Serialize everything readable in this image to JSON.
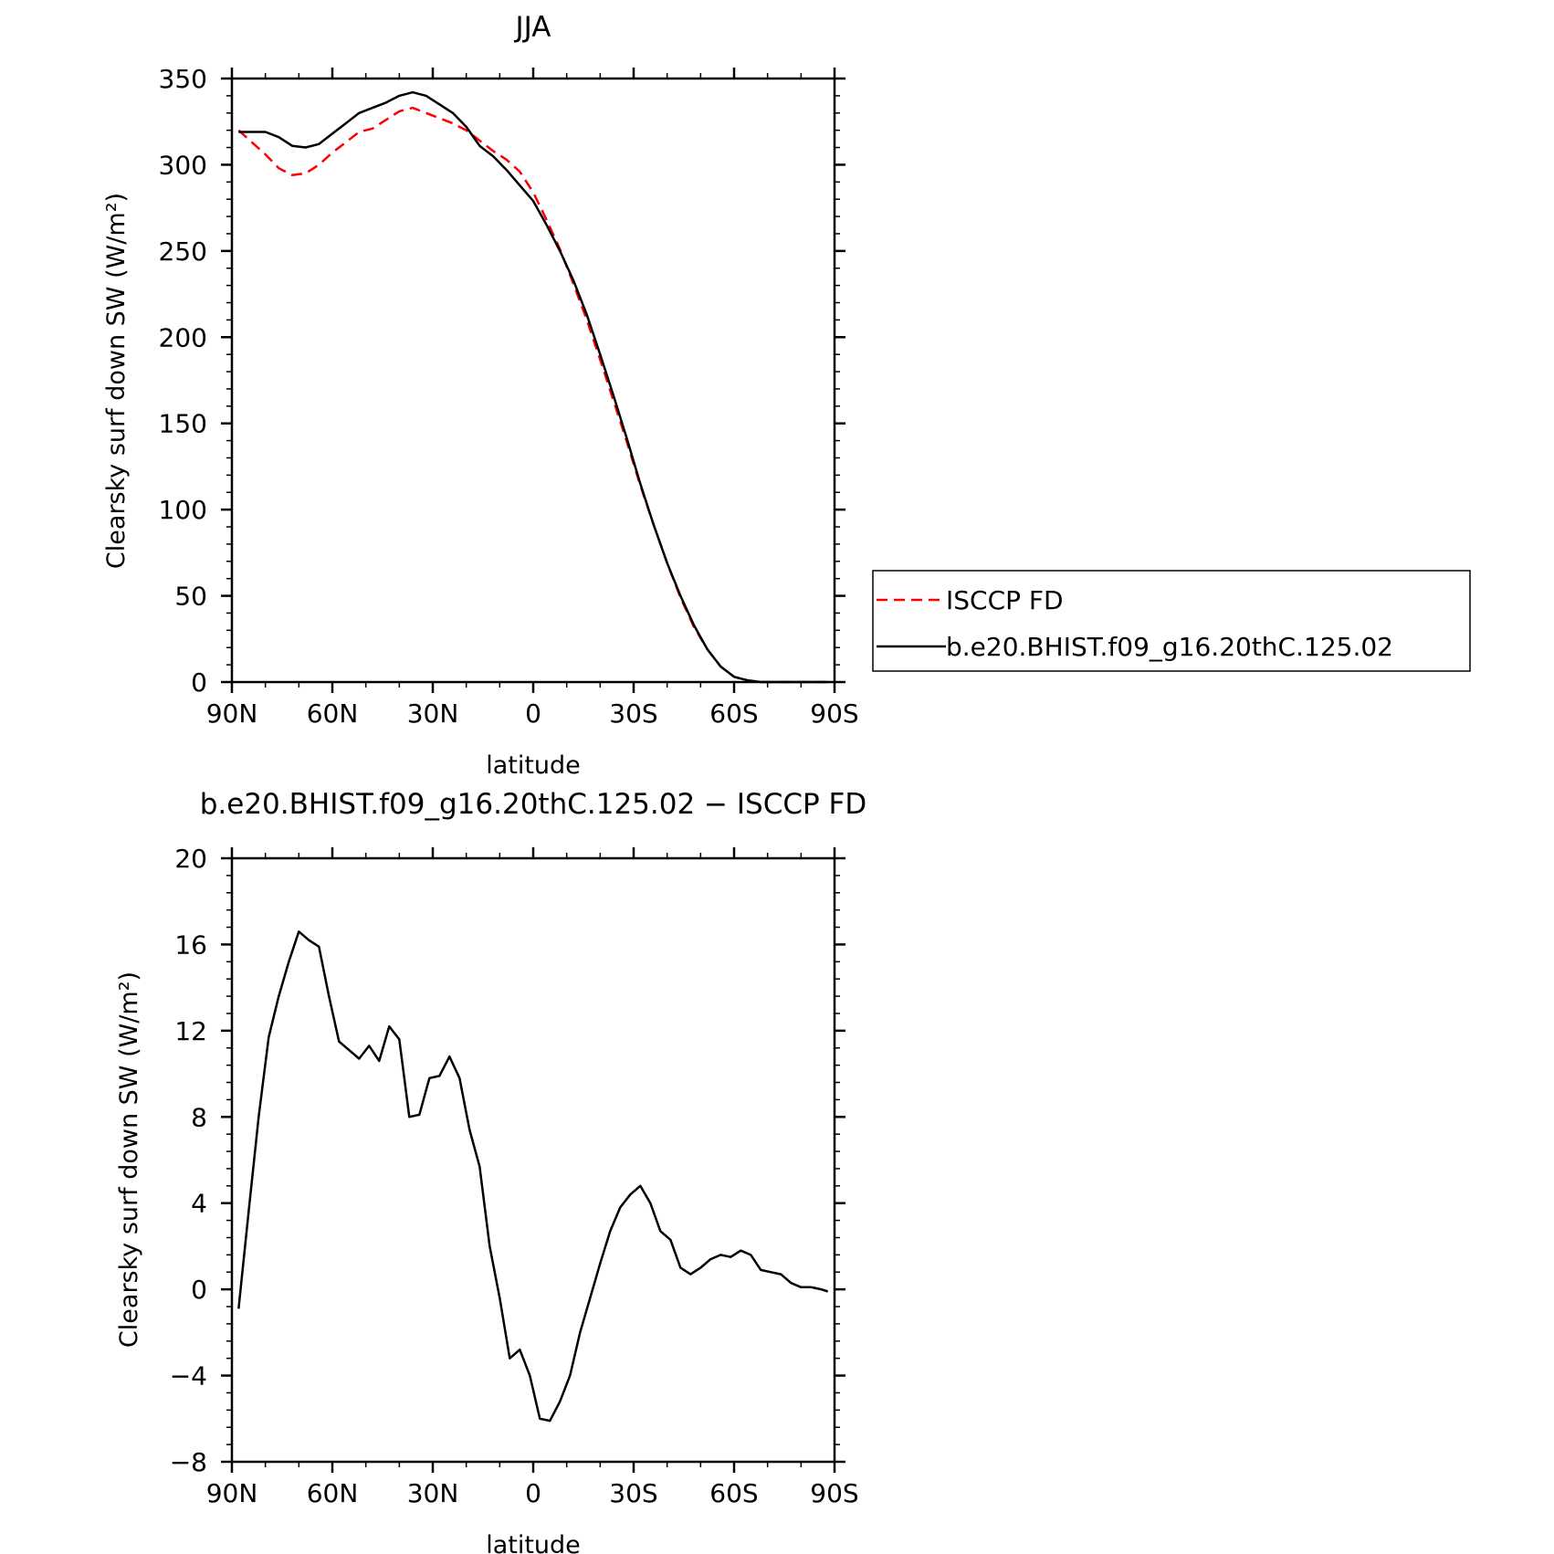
{
  "chart_data": [
    {
      "type": "line",
      "title": "JJA",
      "xlabel": "latitude",
      "ylabel": "Clearsky surf down SW (W/m²)",
      "xlim": [
        90,
        -90
      ],
      "ylim": [
        0,
        350
      ],
      "x_ticks": [
        {
          "value": 90,
          "label": "90N"
        },
        {
          "value": 60,
          "label": "60N"
        },
        {
          "value": 30,
          "label": "30N"
        },
        {
          "value": 0,
          "label": "0"
        },
        {
          "value": -30,
          "label": "30S"
        },
        {
          "value": -60,
          "label": "60S"
        },
        {
          "value": -90,
          "label": "90S"
        }
      ],
      "y_ticks": [
        0,
        50,
        100,
        150,
        200,
        250,
        300,
        350
      ],
      "legend": {
        "placement": "right",
        "entries": [
          "ISCCP FD",
          "b.e20.BHIST.f09_g16.20thC.125.02"
        ]
      },
      "series": [
        {
          "name": "ISCCP FD",
          "color": "#ff0000",
          "dash": "dashed",
          "x": [
            88,
            84,
            80,
            76,
            72,
            68,
            64,
            60,
            56,
            52,
            48,
            44,
            40,
            36,
            32,
            28,
            24,
            20,
            16,
            12,
            8,
            4,
            0,
            -4,
            -8,
            -12,
            -16,
            -20,
            -24,
            -28,
            -32,
            -36,
            -40,
            -44,
            -48,
            -52,
            -56,
            -60,
            -64,
            -68,
            -72,
            -76,
            -80,
            -84,
            -88
          ],
          "values": [
            320,
            313,
            306,
            298,
            294,
            295,
            300,
            307,
            313,
            319,
            321,
            326,
            331,
            333,
            330,
            327,
            324,
            320,
            314,
            308,
            303,
            296,
            284,
            268,
            251,
            231,
            210,
            187,
            163,
            139,
            114,
            91,
            69,
            49,
            32,
            19,
            9,
            3,
            1,
            0,
            0,
            0,
            0,
            0,
            0
          ]
        },
        {
          "name": "b.e20.BHIST.f09_g16.20thC.125.02",
          "color": "#000000",
          "dash": "solid",
          "x": [
            88,
            84,
            80,
            76,
            72,
            68,
            64,
            60,
            56,
            52,
            48,
            44,
            40,
            36,
            32,
            28,
            24,
            20,
            16,
            12,
            8,
            4,
            0,
            -4,
            -8,
            -12,
            -16,
            -20,
            -24,
            -28,
            -32,
            -36,
            -40,
            -44,
            -48,
            -52,
            -56,
            -60,
            -64,
            -68,
            -72,
            -76,
            -80,
            -84,
            -88
          ],
          "values": [
            319,
            319,
            319,
            316,
            311,
            310,
            312,
            318,
            324,
            330,
            333,
            336,
            340,
            342,
            340,
            335,
            330,
            322,
            311,
            305,
            297,
            288,
            279,
            265,
            250,
            233,
            213,
            190,
            166,
            141,
            115,
            91,
            69,
            50,
            33,
            19,
            9,
            3,
            1,
            0,
            0,
            0,
            0,
            0,
            0
          ]
        }
      ]
    },
    {
      "type": "line",
      "title": "b.e20.BHIST.f09_g16.20thC.125.02 − ISCCP FD",
      "xlabel": "latitude",
      "ylabel": "Clearsky surf down SW (W/m²)",
      "xlim": [
        90,
        -90
      ],
      "ylim": [
        -8,
        20
      ],
      "x_ticks": [
        {
          "value": 90,
          "label": "90N"
        },
        {
          "value": 60,
          "label": "60N"
        },
        {
          "value": 30,
          "label": "30N"
        },
        {
          "value": 0,
          "label": "0"
        },
        {
          "value": -30,
          "label": "30S"
        },
        {
          "value": -60,
          "label": "60S"
        },
        {
          "value": -90,
          "label": "90S"
        }
      ],
      "y_ticks": [
        -8,
        -4,
        0,
        4,
        8,
        12,
        16,
        20
      ],
      "series": [
        {
          "color": "#000000",
          "dash": "solid",
          "x": [
            88,
            85,
            82,
            79,
            76,
            73,
            70,
            67,
            64,
            61,
            58,
            55,
            52,
            49,
            46,
            43,
            40,
            37,
            34,
            31,
            28,
            25,
            22,
            19,
            16,
            13,
            10,
            7,
            4,
            1,
            -2,
            -5,
            -8,
            -11,
            -14,
            -17,
            -20,
            -23,
            -26,
            -29,
            -32,
            -35,
            -38,
            -41,
            -44,
            -47,
            -50,
            -53,
            -56,
            -59,
            -62,
            -65,
            -68,
            -71,
            -74,
            -77,
            -80,
            -83,
            -86,
            -88
          ],
          "values": [
            -0.9,
            3.6,
            8.0,
            11.7,
            13.6,
            15.2,
            16.6,
            16.2,
            15.9,
            13.6,
            11.5,
            11.1,
            10.7,
            11.3,
            10.6,
            12.2,
            11.6,
            8.0,
            8.1,
            9.8,
            9.9,
            10.8,
            9.8,
            7.4,
            5.7,
            2.0,
            -0.4,
            -3.2,
            -2.8,
            -4.0,
            -6.0,
            -6.1,
            -5.2,
            -4.0,
            -2.0,
            -0.4,
            1.2,
            2.7,
            3.8,
            4.4,
            4.8,
            4.0,
            2.7,
            2.3,
            1.0,
            0.7,
            1.0,
            1.4,
            1.6,
            1.5,
            1.8,
            1.6,
            0.9,
            0.8,
            0.7,
            0.3,
            0.1,
            0.1,
            0.0,
            -0.1
          ]
        }
      ]
    }
  ]
}
